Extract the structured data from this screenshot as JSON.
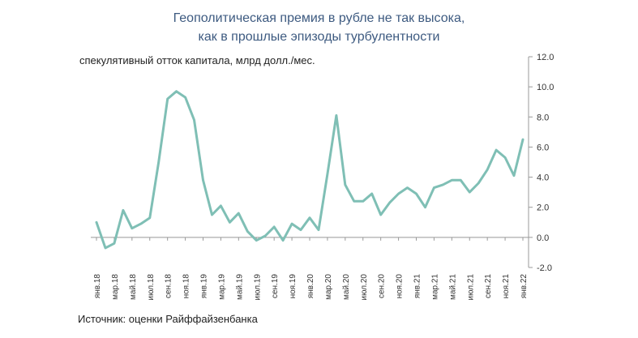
{
  "title_line1": "Геополитическая премия в рубле не так высока,",
  "title_line2": "как в прошлые эпизоды турбулентности",
  "source": "Источник: оценки Райффайзенбанка",
  "colors": {
    "line": "#7fbfb5",
    "title": "#3d5a80",
    "axis": "#999999"
  },
  "chart_data": {
    "type": "line",
    "title": "Геополитическая премия в рубле не так высока, как в прошлые эпизоды турбулентности",
    "ylabel": "спекулятивный отток капитала, млрд долл./мес.",
    "ylim": [
      -2.0,
      12.0
    ],
    "yticks": [
      "12.0",
      "10.0",
      "8.0",
      "6.0",
      "4.0",
      "2.0",
      "0.0",
      "-2.0"
    ],
    "grid": false,
    "x": [
      "янв.18",
      "фев.18",
      "мар.18",
      "апр.18",
      "май.18",
      "июн.18",
      "июл.18",
      "авг.18",
      "сен.18",
      "окт.18",
      "ноя.18",
      "дек.18",
      "янв.19",
      "фев.19",
      "мар.19",
      "апр.19",
      "май.19",
      "июн.19",
      "июл.19",
      "авг.19",
      "сен.19",
      "окт.19",
      "ноя.19",
      "дек.19",
      "янв.20",
      "фев.20",
      "мар.20",
      "апр.20",
      "май.20",
      "июн.20",
      "июл.20",
      "авг.20",
      "сен.20",
      "окт.20",
      "ноя.20",
      "дек.20",
      "янв.21",
      "фев.21",
      "мар.21",
      "апр.21",
      "май.21",
      "июн.21",
      "июл.21",
      "авг.21",
      "сен.21",
      "окт.21",
      "ноя.21",
      "дек.21",
      "янв.22"
    ],
    "xticks": [
      "янв.18",
      "мар.18",
      "май.18",
      "июл.18",
      "сен.18",
      "ноя.18",
      "янв.19",
      "мар.19",
      "май.19",
      "июл.19",
      "сен.19",
      "ноя.19",
      "янв.20",
      "мар.20",
      "май.20",
      "июл.20",
      "сен.20",
      "ноя.20",
      "янв.21",
      "мар.21",
      "май.21",
      "июл.21",
      "сен.21",
      "ноя.21",
      "янв.22"
    ],
    "series": [
      {
        "values": [
          1.0,
          -0.7,
          -0.4,
          1.8,
          0.6,
          0.9,
          1.3,
          5.0,
          9.2,
          9.7,
          9.3,
          7.8,
          3.8,
          1.5,
          2.1,
          1.0,
          1.6,
          0.4,
          -0.2,
          0.1,
          0.7,
          -0.2,
          0.9,
          0.5,
          1.3,
          0.5,
          4.2,
          8.1,
          3.5,
          2.4,
          2.4,
          2.9,
          1.5,
          2.3,
          2.9,
          3.3,
          2.9,
          2.0,
          3.3,
          3.5,
          3.8,
          3.8,
          3.0,
          3.6,
          4.5,
          5.8,
          5.3,
          4.1,
          6.5
        ]
      }
    ]
  }
}
